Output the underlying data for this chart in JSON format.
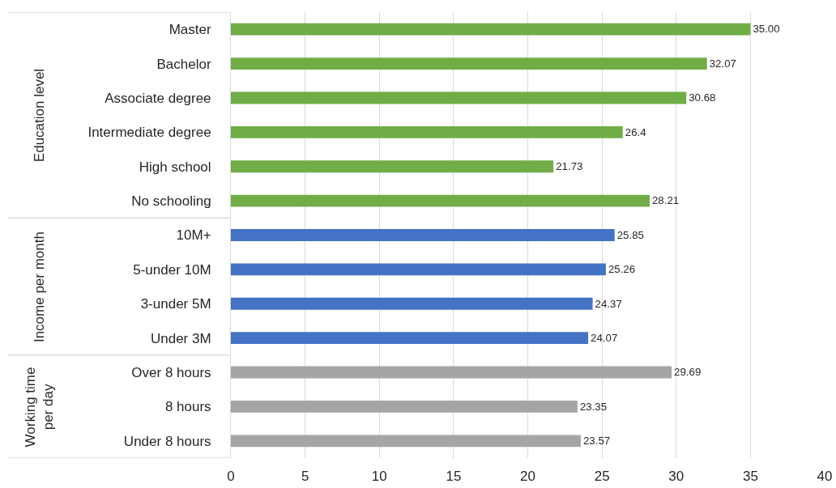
{
  "chart_data": {
    "type": "bar",
    "orientation": "horizontal",
    "categories": [
      "Master",
      "Bachelor",
      "Associate degree",
      "Intermediate degree",
      "High school",
      "No schooling",
      "10M+",
      "5-under 10M",
      "3-under 5M",
      "Under 3M",
      "Over 8 hours",
      "8 hours",
      "Under 8 hours"
    ],
    "values": [
      35.0,
      32.07,
      30.68,
      26.4,
      21.73,
      28.21,
      25.85,
      25.26,
      24.37,
      24.07,
      29.69,
      23.35,
      23.57
    ],
    "value_labels": [
      "35.00",
      "32.07",
      "30.68",
      "26.4",
      "21.73",
      "28.21",
      "25.85",
      "25.26",
      "24.37",
      "24.07",
      "29.69",
      "23.35",
      "23.57"
    ],
    "colors": [
      "#70ad47",
      "#70ad47",
      "#70ad47",
      "#70ad47",
      "#70ad47",
      "#70ad47",
      "#4472c4",
      "#4472c4",
      "#4472c4",
      "#4472c4",
      "#a5a5a5",
      "#a5a5a5",
      "#a5a5a5"
    ],
    "xlim": [
      0,
      40
    ],
    "xticks": [
      0,
      5,
      10,
      15,
      20,
      25,
      30,
      35,
      40
    ],
    "grid": "x",
    "annotations": [
      "Education level",
      "Income per month",
      "Working time per day"
    ]
  }
}
